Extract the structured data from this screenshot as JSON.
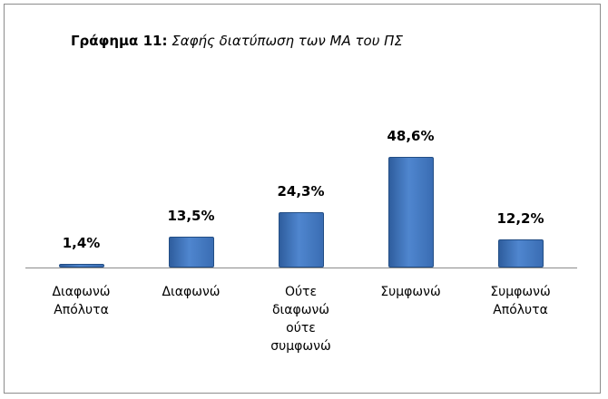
{
  "chart_data": {
    "type": "bar",
    "title": [
      "Γράφημα 11:",
      "Σαφής διατύπωση των ΜΑ του ΠΣ"
    ],
    "categories": [
      "Διαφωνώ Απόλυτα",
      "Διαφωνώ",
      "Ούτε διαφωνώ ούτε συμφωνώ",
      "Συμφωνώ",
      "Συμφωνώ Απόλυτα"
    ],
    "values": [
      1.4,
      13.5,
      24.3,
      48.6,
      12.2
    ],
    "value_labels": [
      "1,4%",
      "13,5%",
      "24,3%",
      "48,6%",
      "12,2%"
    ],
    "color": "#3f72b8"
  }
}
